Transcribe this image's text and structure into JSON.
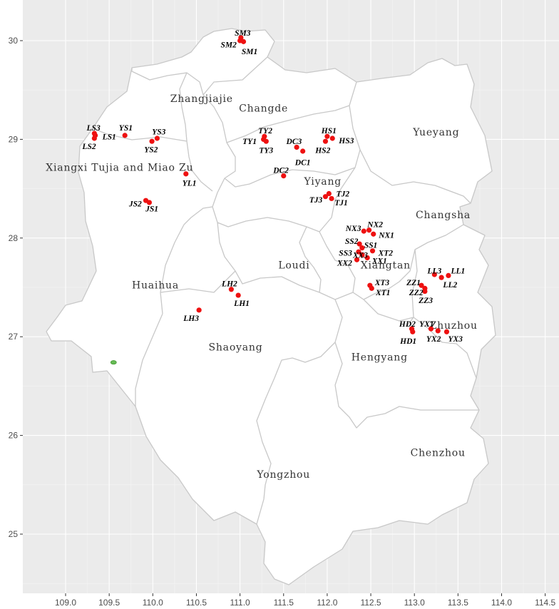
{
  "map": {
    "x_axis": {
      "range": [
        108.75,
        114.5
      ],
      "ticks": [
        109.0,
        109.5,
        110.0,
        110.5,
        111.0,
        111.5,
        112.0,
        112.5,
        113.0,
        113.5,
        114.0,
        114.5
      ],
      "tick_labels": [
        "109.0",
        "109.5",
        "110.0",
        "110.5",
        "111.0",
        "111.5",
        "112.0",
        "112.5",
        "113.0",
        "113.5",
        "114.0",
        "114.5"
      ]
    },
    "y_axis": {
      "range": [
        24.5,
        30.3
      ],
      "ticks": [
        25,
        26,
        27,
        28,
        29,
        30
      ],
      "tick_labels": [
        "25",
        "26",
        "27",
        "28",
        "29",
        "30"
      ]
    },
    "grid": true,
    "colors": {
      "panel": "#ebebeb",
      "land": "#ffffff",
      "boundary": "#c8c8c8",
      "point": "#ee1111",
      "marker": "#66bb55"
    },
    "regions": [
      {
        "name": "Zhangjiajie",
        "lon": 110.56,
        "lat": 29.38
      },
      {
        "name": "Changde",
        "lon": 111.27,
        "lat": 29.28
      },
      {
        "name": "Yueyang",
        "lon": 113.25,
        "lat": 29.04
      },
      {
        "name": "Xiangxi Tujia and Miao Zu",
        "lon": 109.62,
        "lat": 28.68
      },
      {
        "name": "Yiyang",
        "lon": 111.95,
        "lat": 28.54
      },
      {
        "name": "Changsha",
        "lon": 113.33,
        "lat": 28.2
      },
      {
        "name": "Loudi",
        "lon": 111.62,
        "lat": 27.69
      },
      {
        "name": "Xiangtan",
        "lon": 112.67,
        "lat": 27.69
      },
      {
        "name": "Huaihua",
        "lon": 110.03,
        "lat": 27.49
      },
      {
        "name": "Zhuzhou",
        "lon": 113.45,
        "lat": 27.08
      },
      {
        "name": "Shaoyang",
        "lon": 110.95,
        "lat": 26.86
      },
      {
        "name": "Hengyang",
        "lon": 112.6,
        "lat": 26.76
      },
      {
        "name": "Chenzhou",
        "lon": 113.27,
        "lat": 25.79
      },
      {
        "name": "Yongzhou",
        "lon": 111.5,
        "lat": 25.57
      }
    ],
    "sites": [
      {
        "label": "SM3",
        "lon": 111.01,
        "lat": 30.03,
        "lx": 111.03,
        "ly": 30.07
      },
      {
        "label": "SM2",
        "lon": 111.0,
        "lat": 30.0,
        "lx": 110.87,
        "ly": 29.95
      },
      {
        "label": "SM1",
        "lon": 111.04,
        "lat": 29.99,
        "lx": 111.11,
        "ly": 29.88
      },
      {
        "label": "LS3",
        "lon": 109.33,
        "lat": 29.06,
        "lx": 109.32,
        "ly": 29.11
      },
      {
        "label": "LS1",
        "lon": 109.34,
        "lat": 29.04,
        "lx": 109.5,
        "ly": 29.02
      },
      {
        "label": "LS2",
        "lon": 109.33,
        "lat": 29.01,
        "lx": 109.27,
        "ly": 28.92
      },
      {
        "label": "YS1",
        "lon": 109.68,
        "lat": 29.04,
        "lx": 109.69,
        "ly": 29.11
      },
      {
        "label": "YS3",
        "lon": 110.05,
        "lat": 29.01,
        "lx": 110.07,
        "ly": 29.07
      },
      {
        "label": "YS2",
        "lon": 109.99,
        "lat": 28.98,
        "lx": 109.98,
        "ly": 28.89
      },
      {
        "label": "TY2",
        "lon": 111.28,
        "lat": 29.03,
        "lx": 111.29,
        "ly": 29.08
      },
      {
        "label": "TY1",
        "lon": 111.27,
        "lat": 29.0,
        "lx": 111.11,
        "ly": 28.97
      },
      {
        "label": "TY3",
        "lon": 111.3,
        "lat": 28.98,
        "lx": 111.3,
        "ly": 28.88
      },
      {
        "label": "HS1",
        "lon": 112.0,
        "lat": 29.03,
        "lx": 112.02,
        "ly": 29.08
      },
      {
        "label": "HS3",
        "lon": 112.06,
        "lat": 29.01,
        "lx": 112.22,
        "ly": 28.98
      },
      {
        "label": "HS2",
        "lon": 111.98,
        "lat": 28.98,
        "lx": 111.95,
        "ly": 28.88
      },
      {
        "label": "DC3",
        "lon": 111.65,
        "lat": 28.92,
        "lx": 111.62,
        "ly": 28.97
      },
      {
        "label": "DC1",
        "lon": 111.72,
        "lat": 28.88,
        "lx": 111.72,
        "ly": 28.76
      },
      {
        "label": "DC2",
        "lon": 111.5,
        "lat": 28.63,
        "lx": 111.47,
        "ly": 28.68
      },
      {
        "label": "YL1",
        "lon": 110.38,
        "lat": 28.65,
        "lx": 110.42,
        "ly": 28.55
      },
      {
        "label": "TJ2",
        "lon": 112.02,
        "lat": 28.45,
        "lx": 112.18,
        "ly": 28.44
      },
      {
        "label": "TJ3",
        "lon": 111.98,
        "lat": 28.42,
        "lx": 111.87,
        "ly": 28.38
      },
      {
        "label": "TJ1",
        "lon": 112.05,
        "lat": 28.4,
        "lx": 112.16,
        "ly": 28.35
      },
      {
        "label": "JS2",
        "lon": 109.92,
        "lat": 28.38,
        "lx": 109.8,
        "ly": 28.34
      },
      {
        "label": "JS1",
        "lon": 109.96,
        "lat": 28.36,
        "lx": 109.99,
        "ly": 28.29
      },
      {
        "label": "NX2",
        "lon": 112.48,
        "lat": 28.08,
        "lx": 112.55,
        "ly": 28.13
      },
      {
        "label": "NX3",
        "lon": 112.42,
        "lat": 28.07,
        "lx": 112.3,
        "ly": 28.09
      },
      {
        "label": "NX1",
        "lon": 112.53,
        "lat": 28.04,
        "lx": 112.68,
        "ly": 28.02
      },
      {
        "label": "SS2",
        "lon": 112.37,
        "lat": 27.94,
        "lx": 112.28,
        "ly": 27.96
      },
      {
        "label": "SS1",
        "lon": 112.4,
        "lat": 27.9,
        "lx": 112.5,
        "ly": 27.92
      },
      {
        "label": "SS3",
        "lon": 112.36,
        "lat": 27.86,
        "lx": 112.21,
        "ly": 27.84
      },
      {
        "label": "XX3",
        "lon": 112.4,
        "lat": 27.83,
        "lx": 112.38,
        "ly": 27.82
      },
      {
        "label": "XT2",
        "lon": 112.52,
        "lat": 27.87,
        "lx": 112.67,
        "ly": 27.84
      },
      {
        "label": "XX1",
        "lon": 112.46,
        "lat": 27.8,
        "lx": 112.6,
        "ly": 27.76
      },
      {
        "label": "XX2",
        "lon": 112.34,
        "lat": 27.78,
        "lx": 112.2,
        "ly": 27.74
      },
      {
        "label": "XT3",
        "lon": 112.49,
        "lat": 27.52,
        "lx": 112.63,
        "ly": 27.54
      },
      {
        "label": "XT1",
        "lon": 112.51,
        "lat": 27.49,
        "lx": 112.64,
        "ly": 27.44
      },
      {
        "label": "LL3",
        "lon": 113.23,
        "lat": 27.63,
        "lx": 113.23,
        "ly": 27.66
      },
      {
        "label": "LL1",
        "lon": 113.39,
        "lat": 27.62,
        "lx": 113.5,
        "ly": 27.66
      },
      {
        "label": "LL2",
        "lon": 113.31,
        "lat": 27.6,
        "lx": 113.41,
        "ly": 27.52
      },
      {
        "label": "ZZ1",
        "lon": 113.08,
        "lat": 27.52,
        "lx": 112.99,
        "ly": 27.54
      },
      {
        "label": "ZZ2",
        "lon": 113.12,
        "lat": 27.49,
        "lx": 113.02,
        "ly": 27.44
      },
      {
        "label": "ZZ3",
        "lon": 113.12,
        "lat": 27.46,
        "lx": 113.13,
        "ly": 27.36
      },
      {
        "label": "HD2",
        "lon": 112.97,
        "lat": 27.08,
        "lx": 112.92,
        "ly": 27.12
      },
      {
        "label": "HD1",
        "lon": 112.98,
        "lat": 27.05,
        "lx": 112.93,
        "ly": 26.95
      },
      {
        "label": "YX1",
        "lon": 113.19,
        "lat": 27.08,
        "lx": 113.14,
        "ly": 27.12
      },
      {
        "label": "YX2",
        "lon": 113.27,
        "lat": 27.06,
        "lx": 113.22,
        "ly": 26.97
      },
      {
        "label": "YX3",
        "lon": 113.37,
        "lat": 27.05,
        "lx": 113.47,
        "ly": 26.97
      },
      {
        "label": "LH2",
        "lon": 110.9,
        "lat": 27.48,
        "lx": 110.88,
        "ly": 27.53
      },
      {
        "label": "LH1",
        "lon": 110.98,
        "lat": 27.42,
        "lx": 111.02,
        "ly": 27.33
      },
      {
        "label": "LH3",
        "lon": 110.53,
        "lat": 27.27,
        "lx": 110.44,
        "ly": 27.18
      }
    ],
    "marker": {
      "lon": 109.55,
      "lat": 26.74
    }
  }
}
